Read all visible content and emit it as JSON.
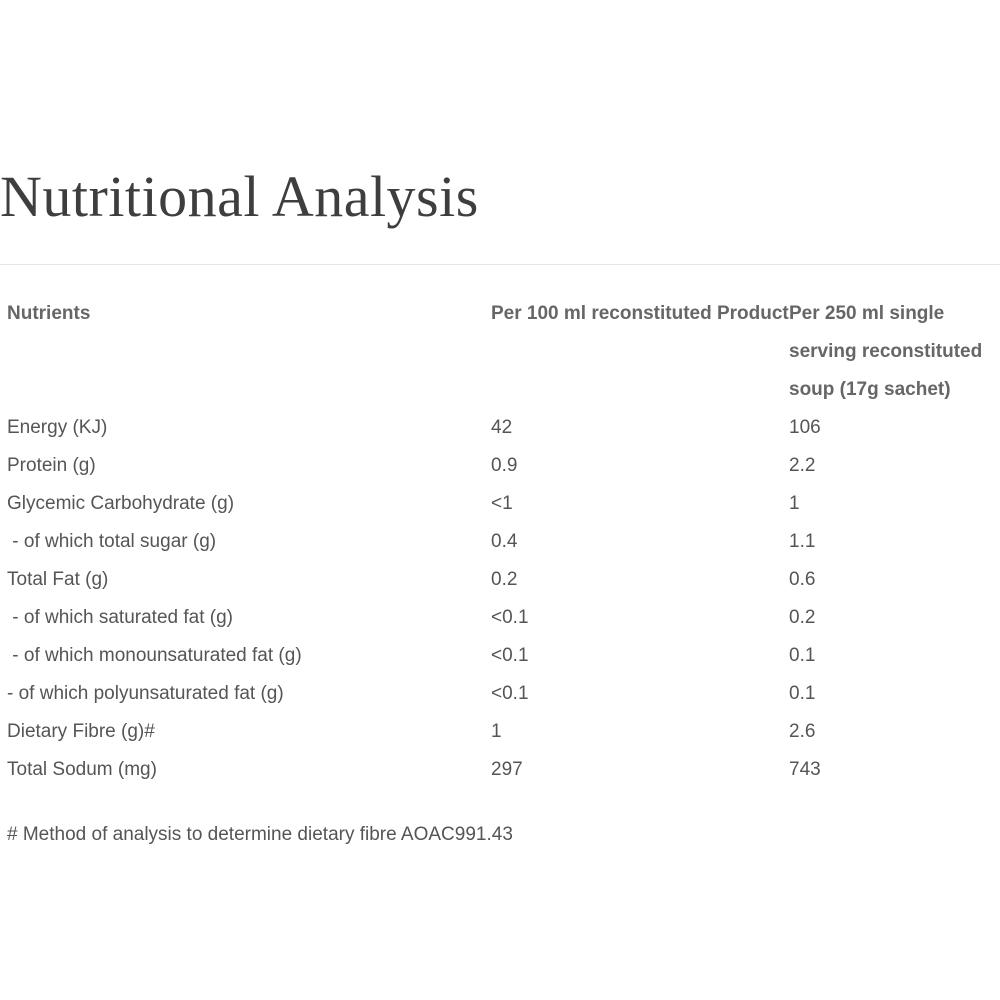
{
  "title": "Nutritional Analysis",
  "table": {
    "headers": [
      "Nutrients",
      "Per 100 ml reconstituted Product",
      "Per 250 ml single serving reconstituted soup (17g sachet)"
    ],
    "rows": [
      [
        "Energy (KJ)",
        "42",
        "106"
      ],
      [
        "Protein (g)",
        "0.9",
        "2.2"
      ],
      [
        "Glycemic Carbohydrate (g)",
        "<1",
        "1"
      ],
      [
        " - of which total sugar (g)",
        "0.4",
        "1.1"
      ],
      [
        "Total Fat (g)",
        "0.2",
        "0.6"
      ],
      [
        " - of which saturated fat (g)",
        "<0.1",
        "0.2"
      ],
      [
        " - of which monounsaturated fat (g)",
        "<0.1",
        "0.1"
      ],
      [
        "- of which polyunsaturated fat (g)",
        "<0.1",
        "0.1"
      ],
      [
        "Dietary Fibre (g)#",
        "1",
        "2.6"
      ],
      [
        "Total Sodum (mg)",
        "297",
        "743"
      ]
    ]
  },
  "footnote": "# Method of analysis to determine dietary fibre AOAC991.43"
}
